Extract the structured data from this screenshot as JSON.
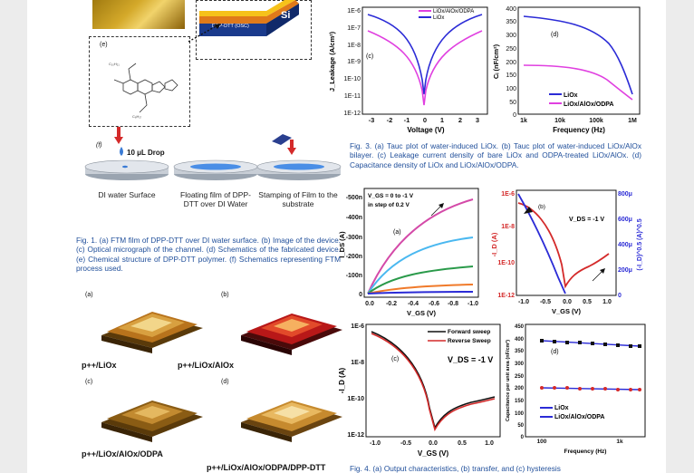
{
  "left": {
    "schematic": {
      "label_e": "(e)",
      "label_f": "(f)",
      "drop_label": "10 μL Drop",
      "stack_top": "Si",
      "stack_osc": "DPP-DTT (OSC)",
      "stack_diel": "LiOx/AlOx",
      "steps": [
        "DI water Surface",
        "Floating film of DPP-DTT over DI Water",
        "Stamping of Film to the substrate"
      ]
    },
    "caption": {
      "prefix": "Fig. 1.",
      "text": "(a) FTM film of DPP-DTT over DI water surface. (b) Image of the device. (c) Optical micrograph of the channel. (d) Schematics of the fabricated device. (e) Chemical structure of DPP-DTT polymer. (f) Schematics representing FTM process used."
    },
    "afm": {
      "panels": [
        "(a)",
        "(b)",
        "(c)",
        "(d)"
      ],
      "labels": [
        "p++/LiOx",
        "p++/LiOx/AlOx",
        "p++/LiOx/AlOx/ODPA",
        "p++/LiOx/AlOx/ODPA/DPP-DTT"
      ]
    }
  },
  "fig3": {
    "c": {
      "panel": "(c)",
      "ylabel": "J_Leakage (A/cm²)",
      "xlabel": "Voltage (V)",
      "yticks": [
        "1E-6",
        "1E-7",
        "1E-8",
        "1E-9",
        "1E-10",
        "1E-11",
        "1E-12"
      ],
      "xticks": [
        "-3",
        "-2",
        "-1",
        "0",
        "1",
        "2",
        "3"
      ],
      "legend": [
        "LiOx/AlOx/ODPA",
        "LiOx"
      ],
      "colors": [
        "#e040e0",
        "#2b2bd6"
      ]
    },
    "d": {
      "panel": "(d)",
      "ylabel": "Cᵢ (nF/cm²)",
      "xlabel": "Frequency (Hz)",
      "yticks": [
        "400",
        "350",
        "300",
        "250",
        "200",
        "150",
        "100",
        "50",
        "0"
      ],
      "xticks": [
        "1k",
        "10k",
        "100k",
        "1M"
      ],
      "legend": [
        "LiOx",
        "LiOx/AlOx/ODPA"
      ]
    },
    "caption": {
      "prefix": "Fig. 3.",
      "text": "(a) Tauc plot of water-induced LiOx. (b) Tauc plot of water-induced LiOx/AlOx bilayer. (c) Leakage current density of bare LiOx and ODPA-treated LiOx/AlOx. (d) Capacitance density of LiOx and LiOx/AlOx/ODPA."
    }
  },
  "fig4": {
    "a": {
      "panel": "(a)",
      "note1": "V_GS = 0 to -1 V",
      "note2": "in step of 0.2 V",
      "yticks": [
        "-500n",
        "-400n",
        "-300n",
        "-200n",
        "-100n",
        "0"
      ],
      "xticks": [
        "0.0",
        "-0.2",
        "-0.4",
        "-0.6",
        "-0.8",
        "-1.0"
      ],
      "ylabel": "I_DS (A)",
      "xlabel": "V_GS (V)"
    },
    "b": {
      "panel": "(b)",
      "note": "V_DS = -1 V",
      "yticks_left": [
        "1E-6",
        "1E-8",
        "1E-10",
        "1E-12"
      ],
      "yticks_right": [
        "800μ",
        "600μ",
        "400μ",
        "200μ",
        "0"
      ],
      "xticks": [
        "-1.0",
        "-0.5",
        "0.0",
        "0.5",
        "1.0"
      ],
      "ylabel": "-I_D (A)",
      "ylabel_right": "(-I_D)^0.5 (A)^0.5",
      "xlabel": "V_GS (V)"
    },
    "c": {
      "panel": "(c)",
      "legend": [
        "Forward sweep",
        "Reverse Sweep"
      ],
      "note": "V_DS = -1 V",
      "yticks": [
        "1E-6",
        "1E-8",
        "1E-10",
        "1E-12"
      ],
      "xticks": [
        "-1.0",
        "-0.5",
        "0.0",
        "0.5",
        "1.0"
      ],
      "ylabel": "-I_D (A)",
      "xlabel": "V_GS (V)"
    },
    "d": {
      "panel": "(d)",
      "ylabel": "Capacitance per unit area (nF/cm²)",
      "xlabel": "Frequency (Hz)",
      "yticks": [
        "450",
        "400",
        "350",
        "300",
        "250",
        "200",
        "150",
        "100",
        "50",
        "0"
      ],
      "xticks": [
        "100",
        "1k"
      ],
      "legend": [
        "LiOx",
        "LiOx/AlOx/ODPA"
      ]
    },
    "caption": {
      "prefix": "Fig. 4.",
      "text": "(a) Output characteristics, (b) transfer, and (c) hysteresis"
    }
  }
}
